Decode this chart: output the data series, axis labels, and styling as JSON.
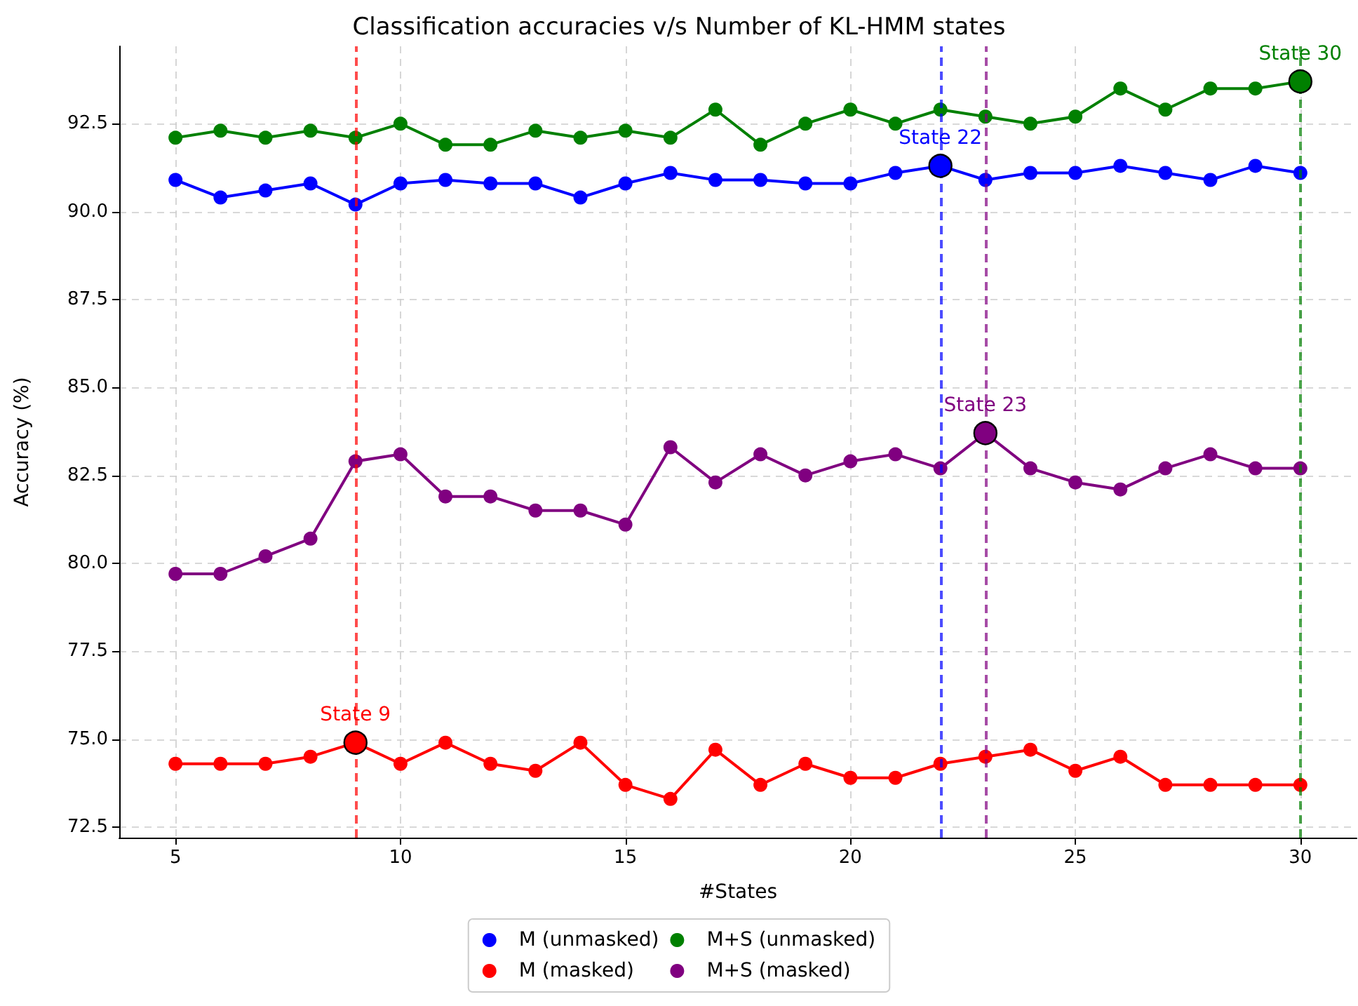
{
  "chart_data": {
    "type": "line",
    "title": "Classification accuracies v/s Number of KL-HMM states",
    "xlabel": "#States",
    "ylabel": "Accuracy (%)",
    "x": [
      5,
      6,
      7,
      8,
      9,
      10,
      11,
      12,
      13,
      14,
      15,
      16,
      17,
      18,
      19,
      20,
      21,
      22,
      23,
      24,
      25,
      26,
      27,
      28,
      29,
      30
    ],
    "series": [
      {
        "name": "M (unmasked)",
        "color": "#0000ff",
        "values": [
          90.9,
          90.4,
          90.6,
          90.8,
          90.2,
          90.8,
          90.9,
          90.8,
          90.8,
          90.4,
          90.8,
          91.1,
          90.9,
          90.9,
          90.8,
          90.8,
          91.1,
          91.3,
          90.9,
          91.1,
          91.1,
          91.3,
          91.1,
          90.9,
          91.3,
          91.1
        ]
      },
      {
        "name": "M (masked)",
        "color": "#ff0000",
        "values": [
          74.3,
          74.3,
          74.3,
          74.5,
          74.9,
          74.3,
          74.9,
          74.3,
          74.1,
          74.9,
          73.7,
          73.3,
          74.7,
          73.7,
          74.3,
          73.9,
          73.9,
          74.3,
          74.5,
          74.7,
          74.1,
          74.5,
          73.7,
          73.7,
          73.7,
          73.7
        ]
      },
      {
        "name": "M+S (unmasked)",
        "color": "#008000",
        "values": [
          92.1,
          92.3,
          92.1,
          92.3,
          92.1,
          92.5,
          91.9,
          91.9,
          92.3,
          92.1,
          92.3,
          92.1,
          92.9,
          91.9,
          92.5,
          92.9,
          92.5,
          92.9,
          92.7,
          92.5,
          92.7,
          93.5,
          92.9,
          93.5,
          93.5,
          93.7
        ]
      },
      {
        "name": "M+S (masked)",
        "color": "#800080",
        "values": [
          79.7,
          79.7,
          80.2,
          80.7,
          82.9,
          83.1,
          81.9,
          81.9,
          81.5,
          81.5,
          81.1,
          83.3,
          82.3,
          83.1,
          82.5,
          82.9,
          83.1,
          82.7,
          83.7,
          82.7,
          82.3,
          82.1,
          82.7,
          83.1,
          82.7,
          82.7
        ]
      }
    ],
    "annotations": [
      {
        "text": "State 22",
        "x": 22,
        "y": 91.3
      },
      {
        "text": "State 9",
        "x": 9,
        "y": 74.9
      },
      {
        "text": "State 30",
        "x": 30,
        "y": 93.7
      },
      {
        "text": "State 23",
        "x": 23,
        "y": 83.7
      }
    ],
    "ref_lines": [
      {
        "axis": "x",
        "value": 22,
        "color": "#0000ff",
        "line_style": "dashed"
      },
      {
        "axis": "x",
        "value": 9,
        "color": "#ff0000",
        "line_style": "dashed"
      },
      {
        "axis": "x",
        "value": 30,
        "color": "#008000",
        "line_style": "dashed"
      },
      {
        "axis": "x",
        "value": 23,
        "color": "#800080",
        "line_style": "dashed"
      }
    ],
    "xlim": [
      3.75,
      31.25
    ],
    "xticks": [
      5,
      10,
      15,
      20,
      25,
      30
    ],
    "ylim": [
      72.2,
      94.7
    ],
    "yticks": [
      {
        "value": 72.5,
        "label": "72.5"
      },
      {
        "value": 75,
        "label": "75.0"
      },
      {
        "value": 77.5,
        "label": "77.5"
      },
      {
        "value": 80,
        "label": "80.0"
      },
      {
        "value": 82.5,
        "label": "82.5"
      },
      {
        "value": 85,
        "label": "85.0"
      },
      {
        "value": 87.5,
        "label": "87.5"
      },
      {
        "value": 90,
        "label": "90.0"
      },
      {
        "value": 92.5,
        "label": "92.5"
      }
    ],
    "grid": true,
    "legend": "bottom",
    "marker": "circle",
    "line_style": "solid"
  }
}
